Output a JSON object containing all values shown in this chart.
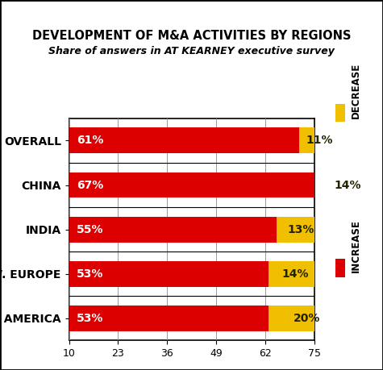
{
  "title_line1": "DEVELOPMENT OF M&A ACTIVITIES BY REGIONS",
  "title_line2": "Share of answers in AT KEARNEY executive survey",
  "categories": [
    "OVERALL",
    "CHINA",
    "INDIA",
    "W. EUROPE",
    "N. AMERICA"
  ],
  "increase_values": [
    61,
    67,
    55,
    53,
    53
  ],
  "decrease_values": [
    11,
    14,
    13,
    14,
    20
  ],
  "increase_color": "#DD0000",
  "decrease_color": "#F0C000",
  "bar_label_color_increase": "#FFFFFF",
  "bar_label_color_decrease": "#222200",
  "xlim": [
    10,
    75
  ],
  "xticks": [
    10,
    23,
    36,
    49,
    62,
    75
  ],
  "background_color": "#FFFFFF",
  "grid_color": "#999999",
  "legend_increase": "INCREASE",
  "legend_decrease": "DECREASE",
  "bar_height": 0.58,
  "title_fontsize": 10.5,
  "subtitle_fontsize": 9.0,
  "label_fontsize": 10,
  "tick_fontsize": 9,
  "legend_fontsize": 8.5
}
